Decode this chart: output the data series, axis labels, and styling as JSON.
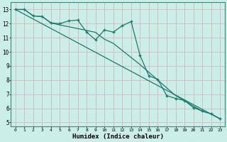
{
  "xlabel": "Humidex (Indice chaleur)",
  "background_color": "#cceee8",
  "plot_bg_color": "#cceee8",
  "grid_color": "#d4b8b8",
  "line_color": "#1a7a6e",
  "xlim": [
    -0.5,
    23.5
  ],
  "ylim": [
    4.7,
    13.5
  ],
  "yticks": [
    5,
    6,
    7,
    8,
    9,
    10,
    11,
    12,
    13
  ],
  "xticks": [
    0,
    1,
    2,
    3,
    4,
    5,
    6,
    7,
    8,
    9,
    10,
    11,
    12,
    13,
    14,
    15,
    16,
    17,
    18,
    19,
    20,
    21,
    22,
    23
  ],
  "series1_x": [
    0,
    1,
    2,
    3,
    4,
    5,
    6,
    7,
    8,
    9,
    10,
    11,
    12,
    13,
    14,
    15,
    16,
    17,
    18,
    19,
    20,
    21,
    22,
    23
  ],
  "series1_y": [
    13.0,
    13.0,
    12.55,
    12.5,
    12.05,
    12.0,
    12.2,
    12.25,
    11.4,
    10.85,
    11.55,
    11.4,
    11.85,
    12.15,
    9.75,
    8.3,
    8.05,
    6.9,
    6.7,
    6.55,
    6.05,
    5.8,
    5.6,
    5.25
  ],
  "series2_x": [
    0,
    1,
    2,
    3,
    4,
    5,
    6,
    7,
    8,
    9,
    10,
    11,
    12,
    13,
    14,
    15,
    16,
    17,
    18,
    19,
    20,
    21,
    22,
    23
  ],
  "series2_y": [
    13.0,
    13.0,
    12.55,
    12.5,
    12.05,
    11.9,
    11.78,
    11.65,
    11.52,
    11.38,
    10.9,
    10.6,
    10.1,
    9.6,
    9.1,
    8.55,
    8.0,
    7.45,
    6.9,
    6.55,
    6.15,
    5.8,
    5.6,
    5.25
  ],
  "series3_x": [
    0,
    23
  ],
  "series3_y": [
    13.0,
    5.25
  ]
}
